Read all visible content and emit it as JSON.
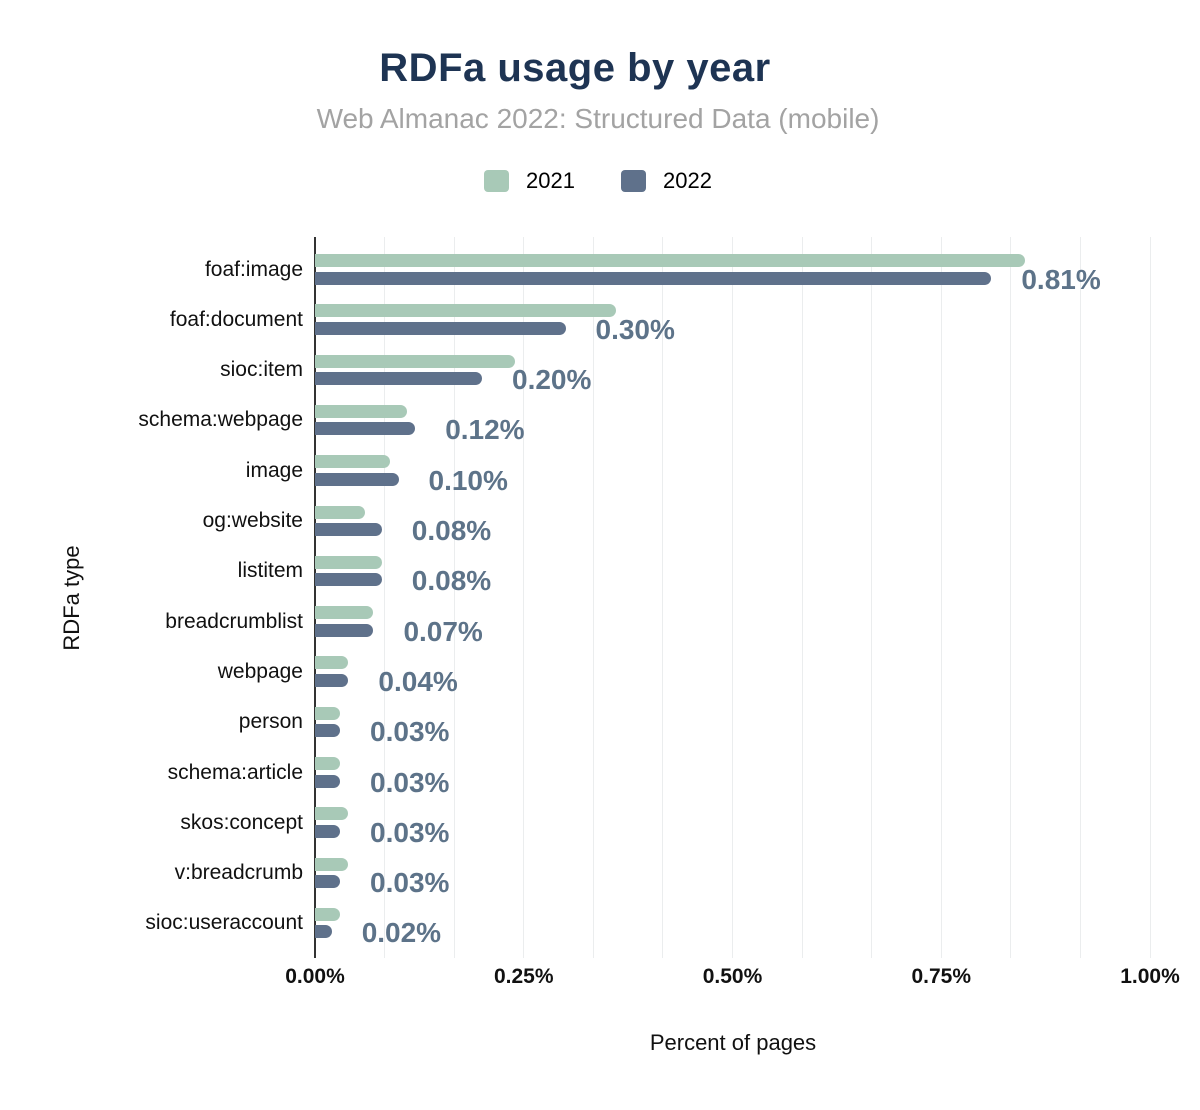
{
  "chart_data": {
    "type": "bar",
    "orientation": "horizontal",
    "title": "RDFa usage by year",
    "subtitle": "Web Almanac 2022: Structured Data (mobile)",
    "xlabel": "Percent of pages",
    "ylabel": "RDFa type",
    "xlim": [
      0,
      1.0
    ],
    "xticks": [
      {
        "value": 0.0,
        "label": "0.00%"
      },
      {
        "value": 0.25,
        "label": "0.25%"
      },
      {
        "value": 0.5,
        "label": "0.50%"
      },
      {
        "value": 0.75,
        "label": "0.75%"
      },
      {
        "value": 1.0,
        "label": "1.00%"
      }
    ],
    "grid": {
      "show": true,
      "minor_divisions": 12
    },
    "legend_position": "top",
    "categories": [
      "foaf:image",
      "foaf:document",
      "sioc:item",
      "schema:webpage",
      "image",
      "og:website",
      "listitem",
      "breadcrumblist",
      "webpage",
      "person",
      "schema:article",
      "skos:concept",
      "v:breadcrumb",
      "sioc:useraccount"
    ],
    "series": [
      {
        "name": "2021",
        "color": "#a8c9b7",
        "values": [
          0.85,
          0.36,
          0.24,
          0.11,
          0.09,
          0.06,
          0.08,
          0.07,
          0.04,
          0.03,
          0.03,
          0.04,
          0.04,
          0.03
        ]
      },
      {
        "name": "2022",
        "color": "#5f718b",
        "values": [
          0.81,
          0.3,
          0.2,
          0.12,
          0.1,
          0.08,
          0.08,
          0.07,
          0.04,
          0.03,
          0.03,
          0.03,
          0.03,
          0.02
        ]
      }
    ],
    "value_labels": {
      "labeled_series": "2022",
      "color": "#5d7389",
      "labels": [
        "0.81%",
        "0.30%",
        "0.20%",
        "0.12%",
        "0.10%",
        "0.08%",
        "0.08%",
        "0.07%",
        "0.04%",
        "0.03%",
        "0.03%",
        "0.03%",
        "0.03%",
        "0.02%"
      ]
    }
  },
  "colors": {
    "title": "#1e3453",
    "subtitle": "#a3a3a3",
    "axis_text": "#111111",
    "grid": "#ebedee",
    "axis_line": "#333333",
    "background": "#ffffff"
  }
}
